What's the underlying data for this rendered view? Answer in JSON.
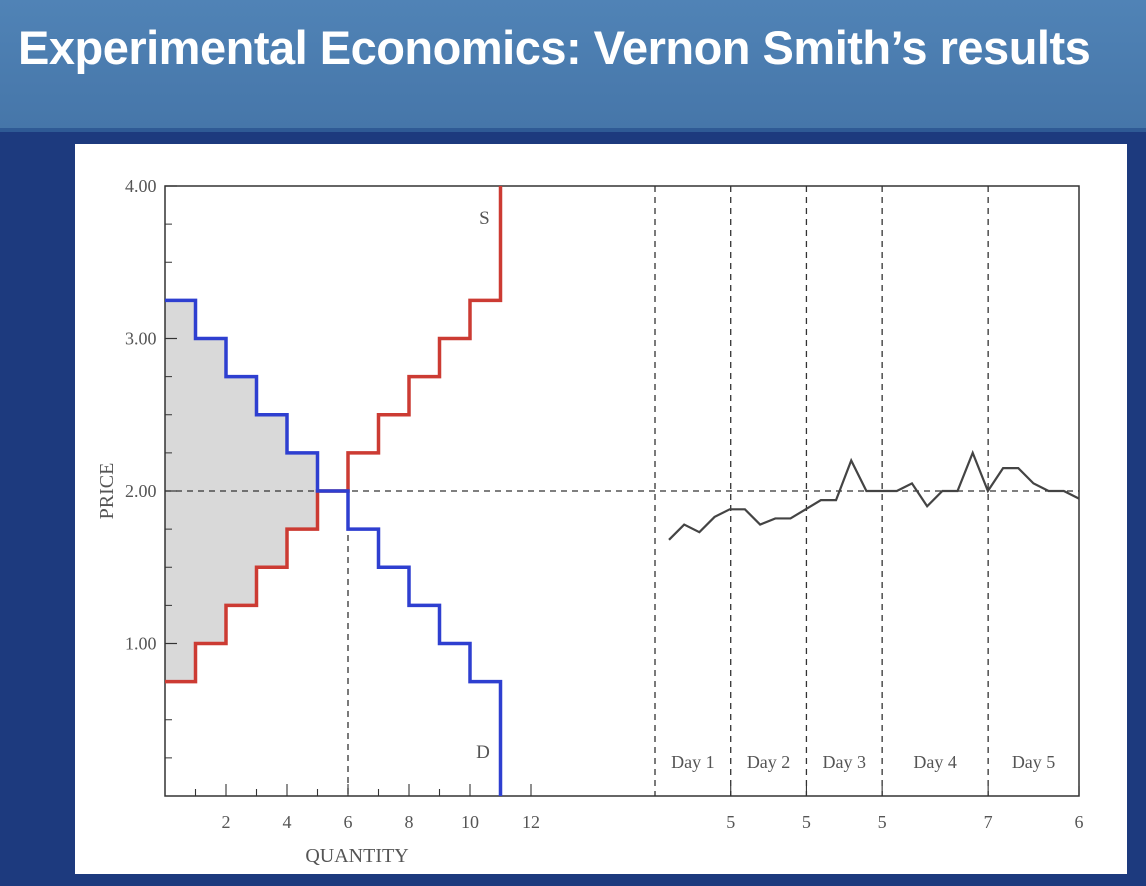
{
  "slide": {
    "title": "Experimental Economics: Vernon Smith’s results"
  },
  "colors": {
    "header": "#4a7db3",
    "background": "#1d3a7e",
    "supply": "#cc3b33",
    "demand": "#2e3fd0",
    "surplus_fill": "#d9d9d9",
    "price_series": "#444444"
  },
  "chart_data": [
    {
      "type": "line",
      "title": "",
      "xlabel": "QUANTITY",
      "ylabel": "PRICE",
      "xlim": [
        0,
        16
      ],
      "ylim": [
        0,
        4.0
      ],
      "x_ticks": [
        "2",
        "4",
        "6",
        "8",
        "10",
        "12"
      ],
      "y_ticks": [
        "1.00",
        "2.00",
        "3.00",
        "4.00"
      ],
      "equilibrium": {
        "price": 2.0,
        "quantity": 6
      },
      "series": [
        {
          "name": "S",
          "steps": [
            {
              "q_from": 0,
              "q_to": 1,
              "price": 0.75
            },
            {
              "q_from": 1,
              "q_to": 2,
              "price": 1.0
            },
            {
              "q_from": 2,
              "q_to": 3,
              "price": 1.25
            },
            {
              "q_from": 3,
              "q_to": 4,
              "price": 1.5
            },
            {
              "q_from": 4,
              "q_to": 5,
              "price": 1.75
            },
            {
              "q_from": 5,
              "q_to": 6,
              "price": 2.0
            },
            {
              "q_from": 6,
              "q_to": 7,
              "price": 2.25
            },
            {
              "q_from": 7,
              "q_to": 8,
              "price": 2.5
            },
            {
              "q_from": 8,
              "q_to": 9,
              "price": 2.75
            },
            {
              "q_from": 9,
              "q_to": 10,
              "price": 3.0
            },
            {
              "q_from": 10,
              "q_to": 11,
              "price": 3.25
            }
          ],
          "vertical_end": {
            "q": 11,
            "to_price": 4.0
          }
        },
        {
          "name": "D",
          "steps": [
            {
              "q_from": 0,
              "q_to": 1,
              "price": 3.25
            },
            {
              "q_from": 1,
              "q_to": 2,
              "price": 3.0
            },
            {
              "q_from": 2,
              "q_to": 3,
              "price": 2.75
            },
            {
              "q_from": 3,
              "q_to": 4,
              "price": 2.5
            },
            {
              "q_from": 4,
              "q_to": 5,
              "price": 2.25
            },
            {
              "q_from": 5,
              "q_to": 6,
              "price": 2.0
            },
            {
              "q_from": 6,
              "q_to": 7,
              "price": 1.75
            },
            {
              "q_from": 7,
              "q_to": 8,
              "price": 1.5
            },
            {
              "q_from": 8,
              "q_to": 9,
              "price": 1.25
            },
            {
              "q_from": 9,
              "q_to": 10,
              "price": 1.0
            },
            {
              "q_from": 10,
              "q_to": 11,
              "price": 0.75
            }
          ],
          "vertical_end": {
            "q": 11,
            "to_price": 0.0
          }
        }
      ]
    },
    {
      "type": "line",
      "title": "",
      "ylim": [
        0,
        4.0
      ],
      "days": [
        {
          "label": "Day 1",
          "trades": 5
        },
        {
          "label": "Day 2",
          "trades": 5
        },
        {
          "label": "Day 3",
          "trades": 5
        },
        {
          "label": "Day 4",
          "trades": 7
        },
        {
          "label": "Day 5",
          "trades": 6
        }
      ],
      "reference_price": 2.0,
      "series": [
        {
          "values": [
            1.68,
            1.78,
            1.73,
            1.83,
            1.88,
            1.88,
            1.78,
            1.82,
            1.82,
            1.88,
            1.94,
            1.94,
            2.2,
            2.0,
            2.0,
            2.0,
            2.05,
            1.9,
            2.0,
            2.0,
            2.25,
            2.0,
            2.15,
            2.15,
            2.05,
            2.0,
            2.0,
            1.95
          ]
        }
      ]
    }
  ]
}
